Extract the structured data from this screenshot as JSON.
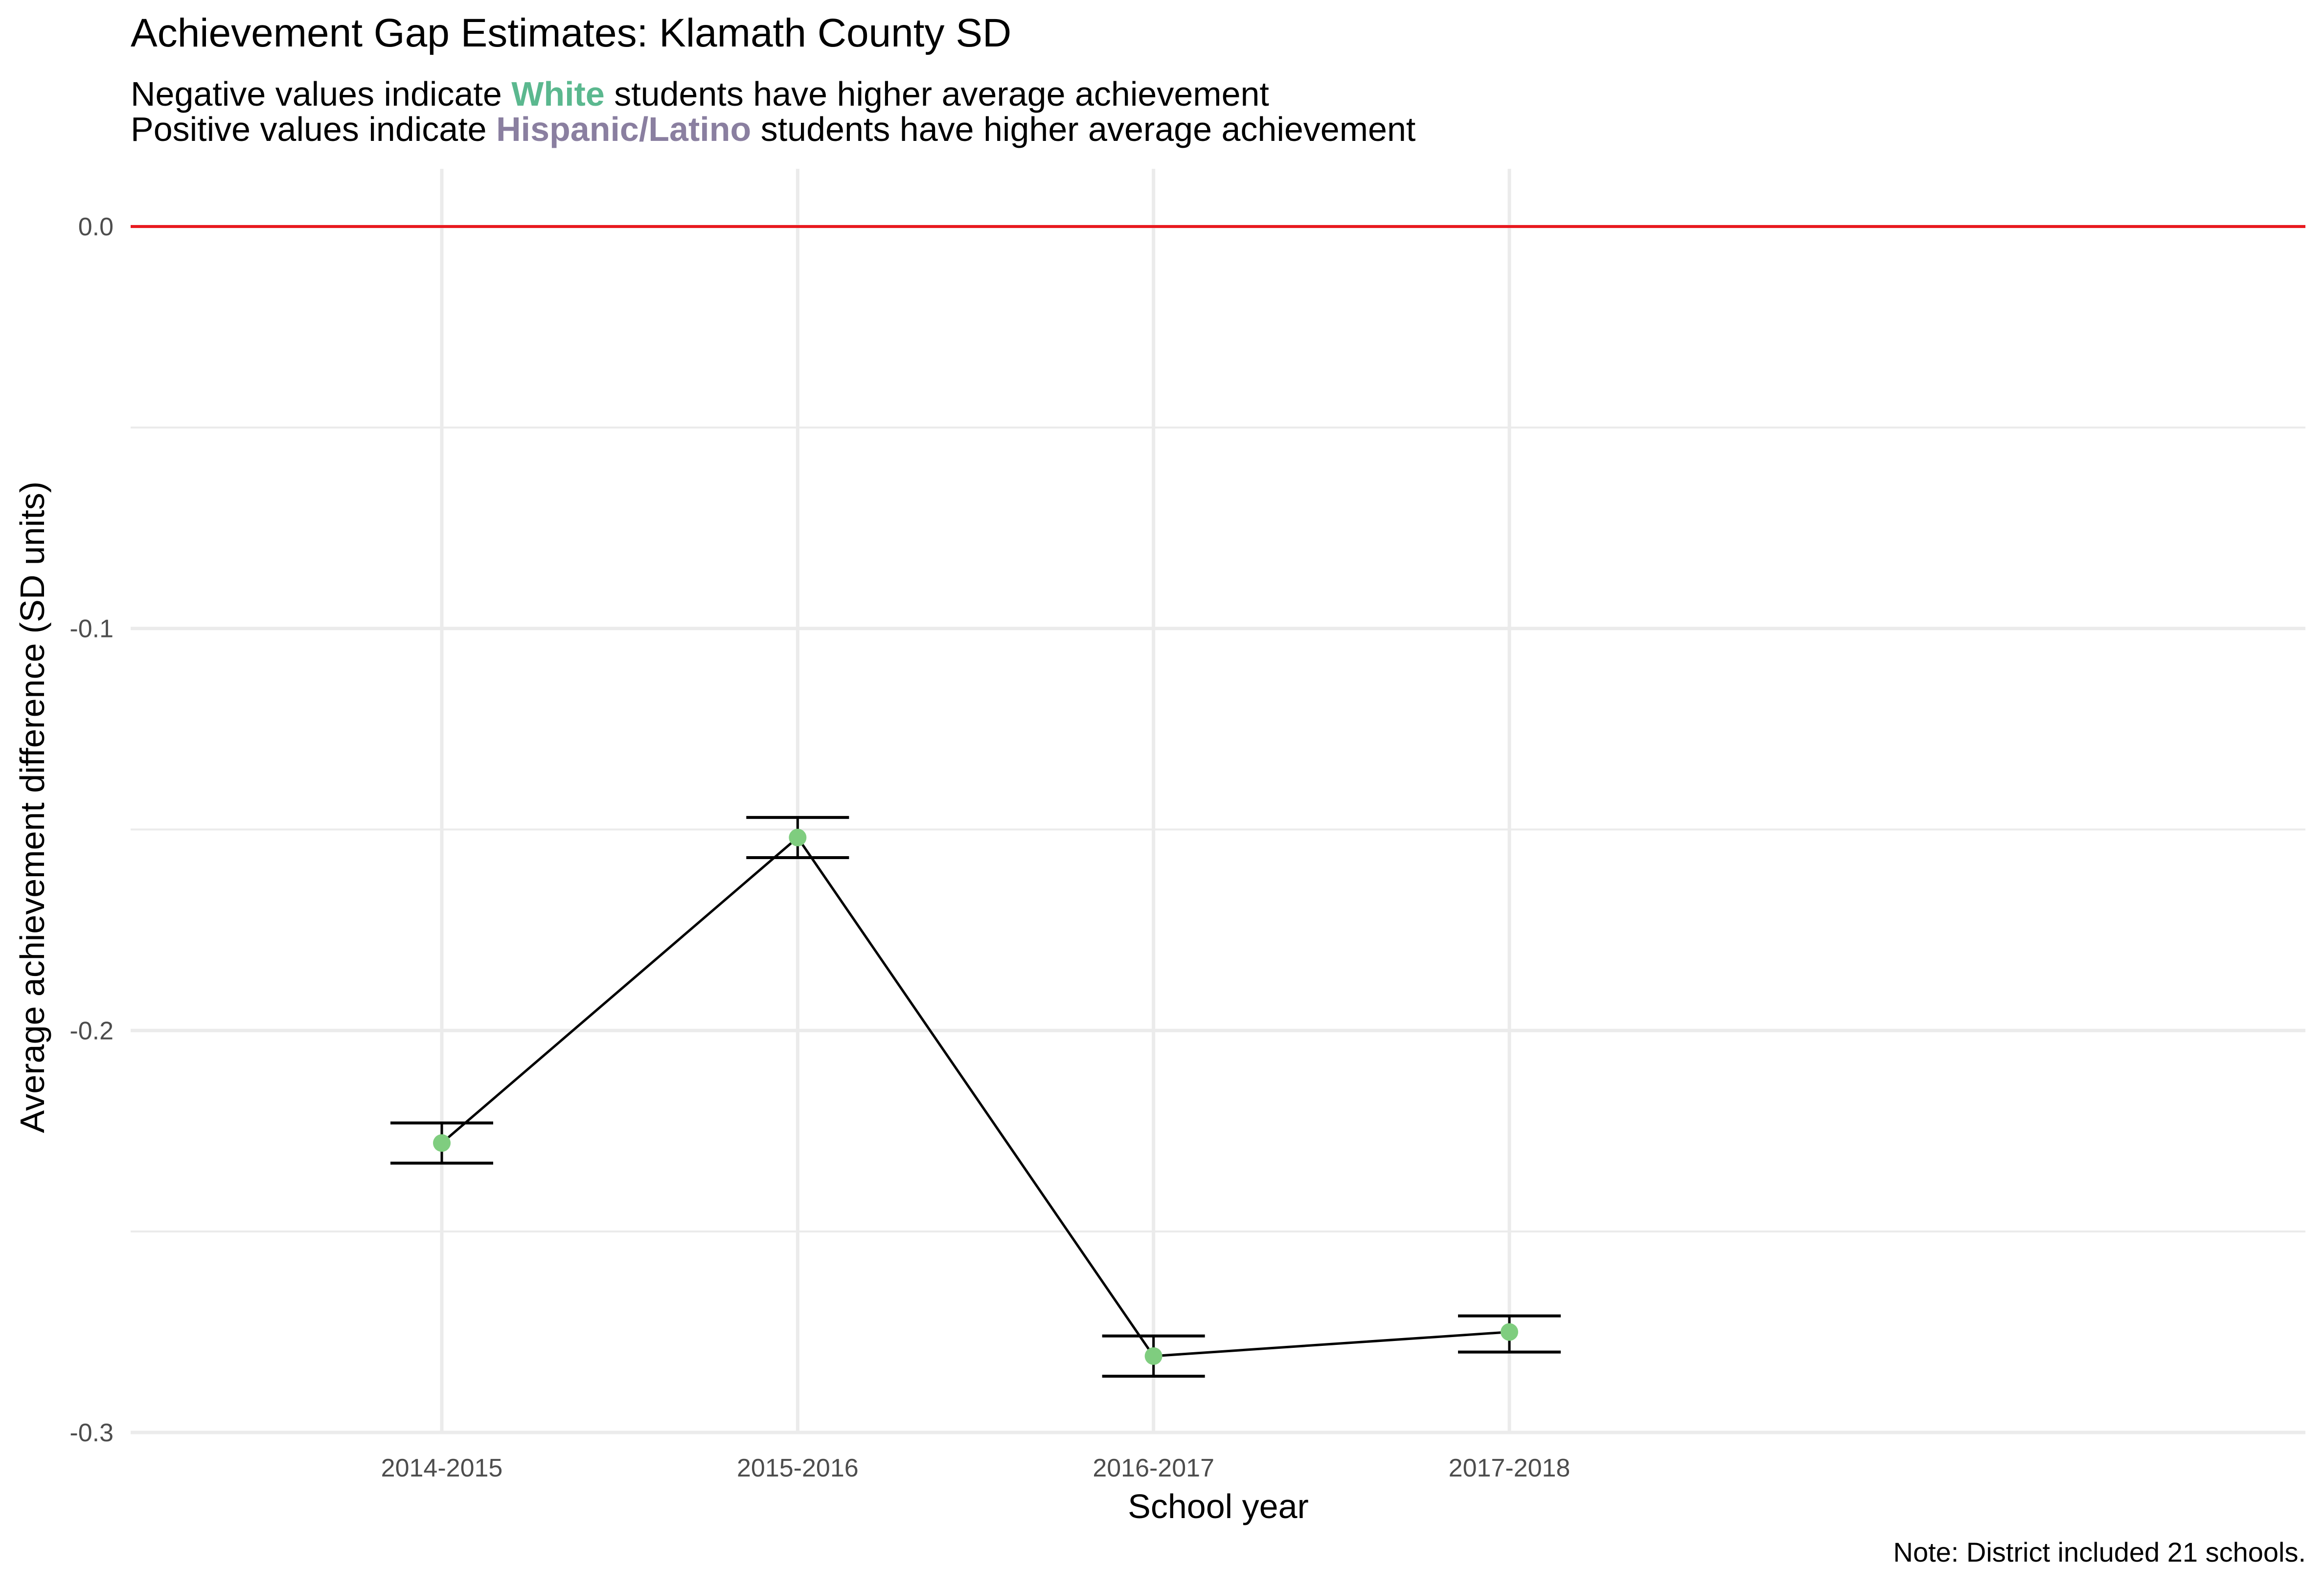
{
  "chart_data": {
    "type": "line",
    "title": "Achievement Gap Estimates: Klamath County SD",
    "subtitle_lines": [
      {
        "before": "Negative values indicate ",
        "highlight": "White",
        "after": " students have higher average achievement"
      },
      {
        "before": "Positive values indicate ",
        "highlight": "Hispanic/Latino",
        "after": " students have higher average achievement"
      }
    ],
    "xlabel": "School year",
    "ylabel": "Average achievement difference (SD units)",
    "categories": [
      "2014-2015",
      "2015-2016",
      "2016-2017",
      "2017-2018"
    ],
    "values": [
      -0.228,
      -0.152,
      -0.281,
      -0.275
    ],
    "ci_lower": [
      -0.233,
      -0.157,
      -0.286,
      -0.28
    ],
    "ci_upper": [
      -0.223,
      -0.147,
      -0.276,
      -0.271
    ],
    "reference_line": 0.0,
    "ylim": [
      -0.3,
      0.01
    ],
    "y_ticks": [
      0.0,
      -0.1,
      -0.2,
      -0.3
    ],
    "y_tick_labels": [
      "0.0",
      "-0.1",
      "-0.2",
      "-0.3"
    ],
    "grid": true,
    "caption": "Note: District included 21 schools."
  },
  "colors": {
    "white_group": "#5bb88f",
    "hispanic_group": "#8a7fa0",
    "point": "#7fcd7f",
    "reference_line": "#e8191f",
    "line": "#000000",
    "grid": "#ebebeb"
  }
}
